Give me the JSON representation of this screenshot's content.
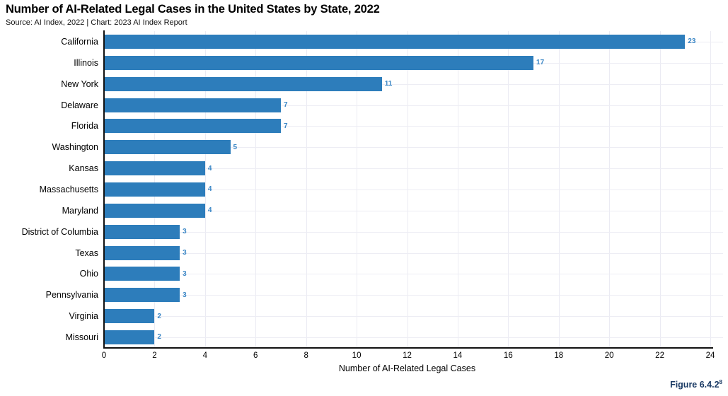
{
  "header": {
    "title": "Number of AI-Related Legal Cases in the United States by State, 2022",
    "subtitle": "Source: AI Index, 2022 | Chart: 2023 AI Index Report"
  },
  "chart_data": {
    "type": "bar",
    "orientation": "horizontal",
    "title": "Number of AI-Related Legal Cases in the United States by State, 2022",
    "categories": [
      "California",
      "Illinois",
      "New York",
      "Delaware",
      "Florida",
      "Washington",
      "Kansas",
      "Massachusetts",
      "Maryland",
      "District of Columbia",
      "Texas",
      "Ohio",
      "Pennsylvania",
      "Virginia",
      "Missouri"
    ],
    "values": [
      23,
      17,
      11,
      7,
      7,
      5,
      4,
      4,
      4,
      3,
      3,
      3,
      3,
      2,
      2
    ],
    "xlabel": "Number of AI-Related Legal Cases",
    "ylabel": "",
    "xlim": [
      0,
      24
    ],
    "xticks": [
      0,
      2,
      4,
      6,
      8,
      10,
      12,
      14,
      16,
      18,
      20,
      22,
      24
    ],
    "grid": true,
    "legend": "none",
    "bar_color": "#2d7dbb",
    "value_label_color": "#3b87c6"
  },
  "footer": {
    "figure_label": "Figure 6.4.2",
    "figure_superscript": "8"
  }
}
